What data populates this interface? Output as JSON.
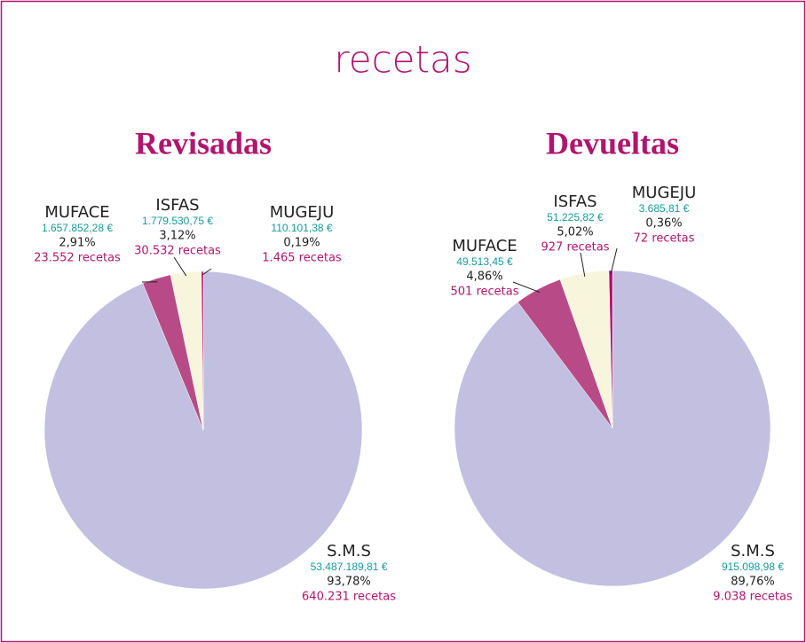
{
  "title": "recetas",
  "chart_data": [
    {
      "type": "pie",
      "title": "Revisadas",
      "categories": [
        "S.M.S",
        "MUFACE",
        "ISFAS",
        "MUGEJU"
      ],
      "values": [
        93.78,
        2.91,
        3.12,
        0.19
      ],
      "value_labels": [
        "93,78%",
        "2,91%",
        "3,12%",
        "0,19%"
      ],
      "amounts": [
        "53.487.189,81 €",
        "1.657.852,28 €",
        "1.779.530,75 €",
        "110.101,38 €"
      ],
      "recetas": [
        "640.231 recetas",
        "23.552 recetas",
        "30.532 recetas",
        "1.465 recetas"
      ],
      "colors": [
        "#c2bfe0",
        "#b84b87",
        "#f8f5dd",
        "#b0036f"
      ]
    },
    {
      "type": "pie",
      "title": "Devueltas",
      "categories": [
        "S.M.S",
        "MUFACE",
        "ISFAS",
        "MUGEJU"
      ],
      "values": [
        89.76,
        4.86,
        5.02,
        0.36
      ],
      "value_labels": [
        "89,76%",
        "4,86%",
        "5,02%",
        "0,36%"
      ],
      "amounts": [
        "915.098,98 €",
        "49.513,45 €",
        "51.225,82 €",
        "3.685,81 €"
      ],
      "recetas": [
        "9.038 recetas",
        "501 recetas",
        "927 recetas",
        "72 recetas"
      ],
      "colors": [
        "#c2bfe0",
        "#b84b87",
        "#f8f5dd",
        "#b0036f"
      ]
    }
  ]
}
